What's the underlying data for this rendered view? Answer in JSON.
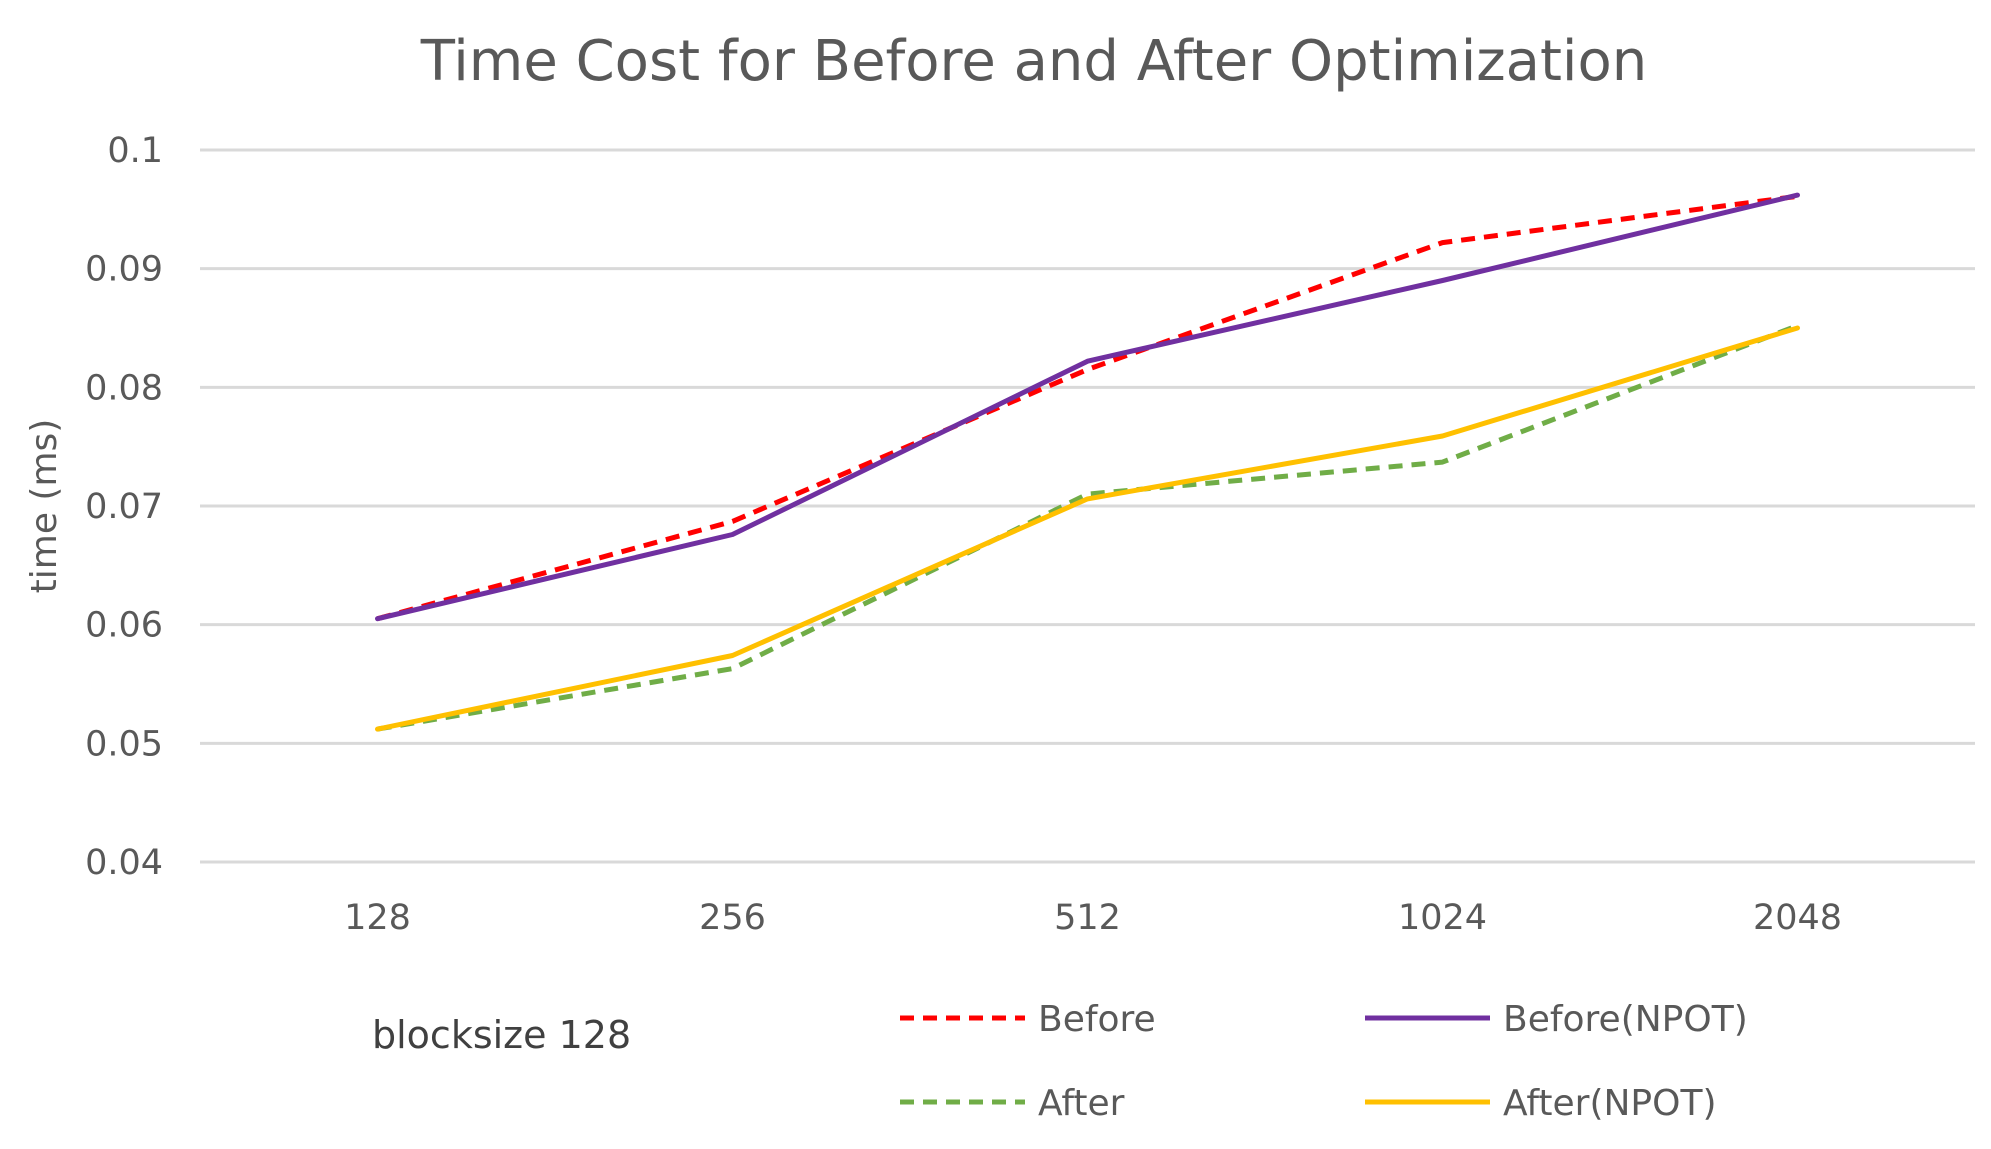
{
  "chart_data": {
    "type": "line",
    "title": "Time Cost for Before and After Optimization",
    "xlabel": "",
    "ylabel": "time (ms)",
    "categories": [
      "128",
      "256",
      "512",
      "1024",
      "2048"
    ],
    "ylim": [
      0.04,
      0.1
    ],
    "yticks": [
      "0.04",
      "0.05",
      "0.06",
      "0.07",
      "0.08",
      "0.09",
      "0.1"
    ],
    "grid": "horizontal",
    "legend_position": "bottom",
    "annotation": "blocksize 128",
    "series": [
      {
        "name": "Before",
        "values": [
          0.0605,
          0.0687,
          0.0815,
          0.0922,
          0.0961
        ],
        "color": "#ff0000",
        "dashed": true
      },
      {
        "name": "Before(NPOT)",
        "values": [
          0.0605,
          0.0676,
          0.0822,
          0.089,
          0.0962
        ],
        "color": "#7030a0",
        "dashed": false
      },
      {
        "name": "After",
        "values": [
          0.0512,
          0.0563,
          0.071,
          0.0737,
          0.0852
        ],
        "color": "#70ad47",
        "dashed": true
      },
      {
        "name": "After(NPOT)",
        "values": [
          0.0512,
          0.0574,
          0.0706,
          0.0759,
          0.085
        ],
        "color": "#ffc000",
        "dashed": false
      }
    ]
  }
}
